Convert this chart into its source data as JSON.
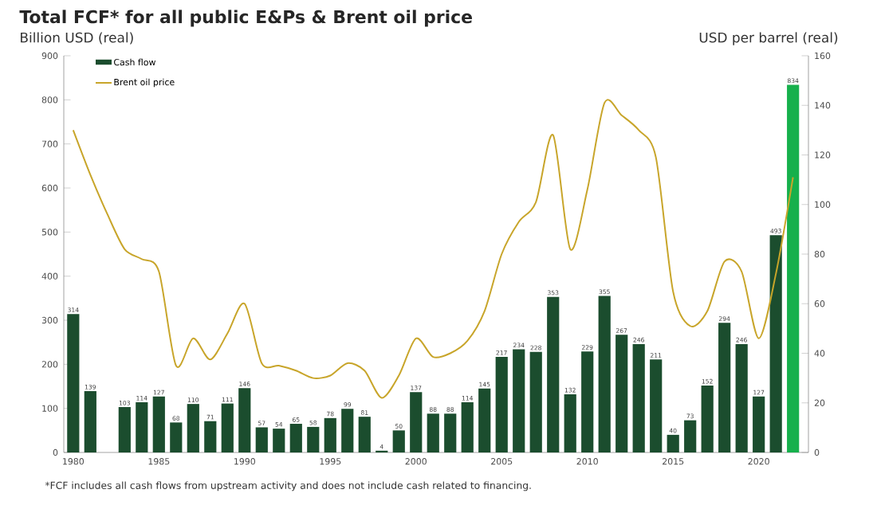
{
  "chart_data": {
    "type": "bar",
    "title": "Total FCF* for all public E&Ps & Brent oil price",
    "ylabel": "Billion USD (real)",
    "y2label": "USD per barrel (real)",
    "categories": [
      "1980",
      null,
      null,
      null,
      null,
      "1985",
      null,
      null,
      null,
      null,
      "1990",
      null,
      null,
      null,
      null,
      "1995",
      null,
      null,
      null,
      null,
      "2000",
      null,
      null,
      null,
      null,
      "2005",
      null,
      null,
      null,
      null,
      "2010",
      null,
      null,
      null,
      null,
      "2015",
      null,
      null,
      null,
      null,
      "2020",
      null,
      null
    ],
    "series": [
      {
        "name": "Cash flow",
        "value_labels": [
          "314",
          "139",
          null,
          "103",
          "114",
          "127",
          "68",
          "110",
          "71",
          "111",
          "146",
          "57",
          "54",
          "65",
          "58",
          "78",
          "99",
          "81",
          "4",
          "50",
          "137",
          "88",
          "88",
          "114",
          "145",
          "217",
          "234",
          "228",
          "353",
          "132",
          "229",
          "355",
          "267",
          "246",
          "211",
          "40",
          "73",
          "152",
          "294",
          "246",
          "127",
          "493",
          "834"
        ],
        "color": "#1b4d2e",
        "colors": [
          "#1b4d2e",
          "#1b4d2e",
          "#1b4d2e",
          "#1b4d2e",
          "#1b4d2e",
          "#1b4d2e",
          "#1b4d2e",
          "#1b4d2e",
          "#1b4d2e",
          "#1b4d2e",
          "#1b4d2e",
          "#1b4d2e",
          "#1b4d2e",
          "#1b4d2e",
          "#1b4d2e",
          "#1b4d2e",
          "#1b4d2e",
          "#1b4d2e",
          "#1b4d2e",
          "#1b4d2e",
          "#1b4d2e",
          "#1b4d2e",
          "#1b4d2e",
          "#1b4d2e",
          "#1b4d2e",
          "#1b4d2e",
          "#1b4d2e",
          "#1b4d2e",
          "#1b4d2e",
          "#1b4d2e",
          "#1b4d2e",
          "#1b4d2e",
          "#1b4d2e",
          "#1b4d2e",
          "#1b4d2e",
          "#1b4d2e",
          "#1b4d2e",
          "#1b4d2e",
          "#1b4d2e",
          "#1b4d2e",
          "#1b4d2e",
          "#1b4d2e",
          "#16b04c"
        ],
        "values": [
          314,
          139,
          null,
          103,
          114,
          127,
          68,
          110,
          71,
          111,
          146,
          57,
          54,
          65,
          58,
          78,
          99,
          81,
          4,
          50,
          137,
          88,
          88,
          114,
          145,
          217,
          234,
          228,
          353,
          132,
          229,
          355,
          267,
          246,
          211,
          40,
          73,
          152,
          294,
          246,
          127,
          493,
          834
        ]
      },
      {
        "name": "Brent oil price",
        "type": "line",
        "axis": "y2",
        "color": "#c8a52a",
        "values": [
          130,
          112,
          96,
          82,
          78,
          73,
          35,
          46,
          37.5,
          48,
          60,
          36,
          35,
          33,
          30,
          31,
          36,
          33,
          22,
          31,
          46,
          38.5,
          40,
          45,
          57,
          80,
          93,
          101,
          128,
          82,
          106,
          141,
          136,
          130,
          119,
          65,
          51,
          57,
          77,
          73,
          46,
          72,
          111
        ]
      }
    ],
    "ylim": [
      0,
      900
    ],
    "yticks": [
      0,
      100,
      200,
      300,
      400,
      500,
      600,
      700,
      800,
      900
    ],
    "y2lim": [
      0,
      160
    ],
    "y2ticks": [
      0,
      20,
      40,
      60,
      80,
      100,
      120,
      140,
      160
    ],
    "legend": "top left",
    "annotations": [
      "*FCF includes all cash flows from upstream activity and does not include cash related to financing."
    ]
  }
}
